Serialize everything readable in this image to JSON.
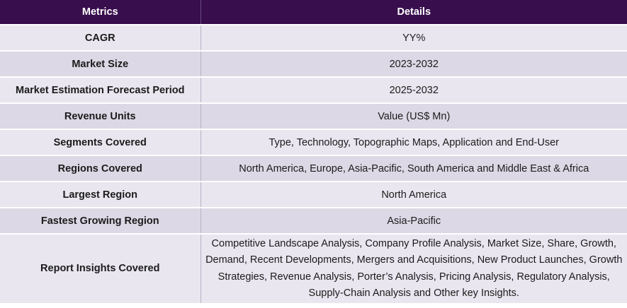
{
  "header": {
    "metrics": "Metrics",
    "details": "Details"
  },
  "rows": [
    {
      "metric": "CAGR",
      "detail": "YY%"
    },
    {
      "metric": "Market Size",
      "detail": "2023-2032"
    },
    {
      "metric": "Market Estimation Forecast Period",
      "detail": "2025-2032"
    },
    {
      "metric": "Revenue Units",
      "detail": "Value (US$ Mn)"
    },
    {
      "metric": "Segments Covered",
      "detail": "Type, Technology, Topographic Maps, Application and End-User"
    },
    {
      "metric": "Regions Covered",
      "detail": "North America, Europe, Asia-Pacific, South America and Middle East & Africa"
    },
    {
      "metric": "Largest Region",
      "detail": "North America"
    },
    {
      "metric": "Fastest Growing Region",
      "detail": "Asia-Pacific"
    },
    {
      "metric": "Report Insights Covered",
      "detail": "Competitive Landscape Analysis, Company Profile Analysis, Market Size, Share, Growth, Demand, Recent Developments, Mergers and Acquisitions, New Product Launches, Growth Strategies, Revenue Analysis, Porter’s Analysis, Pricing Analysis, Regulatory Analysis, Supply-Chain Analysis and Other key Insights."
    }
  ]
}
